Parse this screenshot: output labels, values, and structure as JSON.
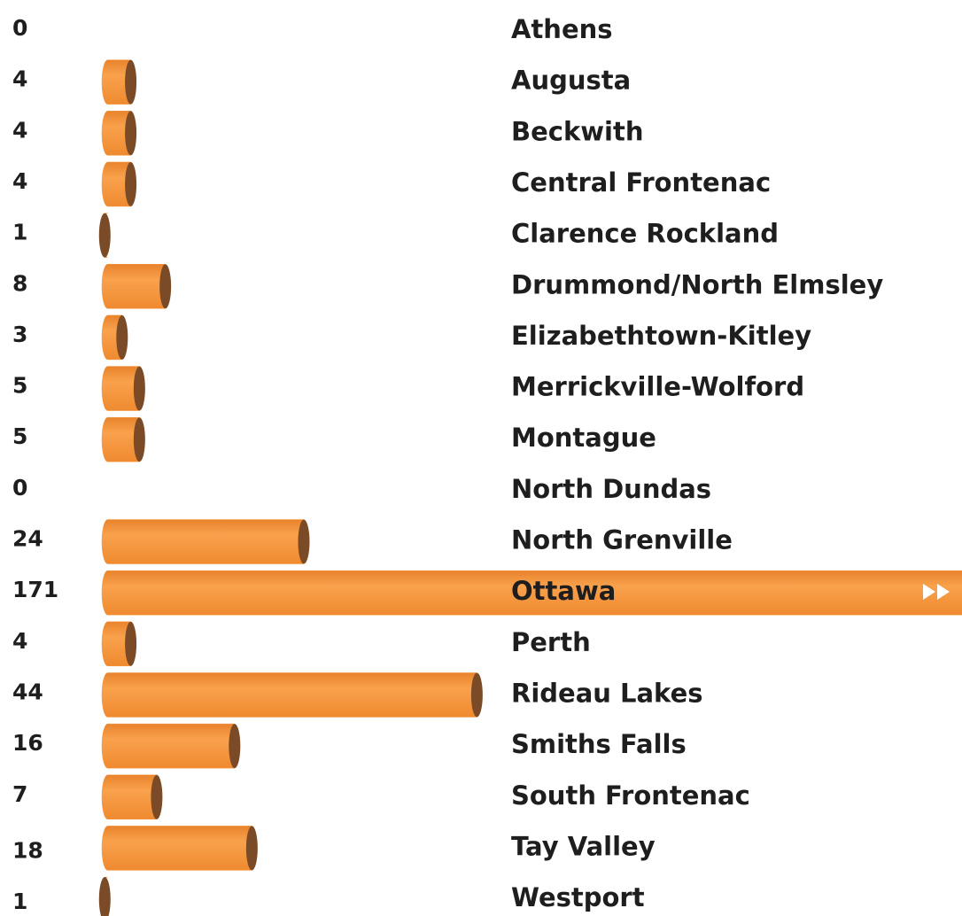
{
  "chart_data": {
    "type": "bar",
    "orientation": "horizontal",
    "categories": [
      "Athens",
      "Augusta",
      "Beckwith",
      "Central Frontenac",
      "Clarence Rockland",
      "Drummond/North Elmsley",
      "Elizabethtown-Kitley",
      "Merrickville-Wolford",
      "Montague",
      "North Dundas",
      "North Grenville",
      "Ottawa",
      "Perth",
      "Rideau Lakes",
      "Smiths Falls",
      "South Frontenac",
      "Tay Valley",
      "Westport"
    ],
    "values": [
      0,
      4,
      4,
      4,
      1,
      8,
      3,
      5,
      5,
      0,
      24,
      171,
      4,
      44,
      16,
      7,
      18,
      1
    ],
    "color": "#f7963c",
    "cap_color": "#7b4a27"
  }
}
